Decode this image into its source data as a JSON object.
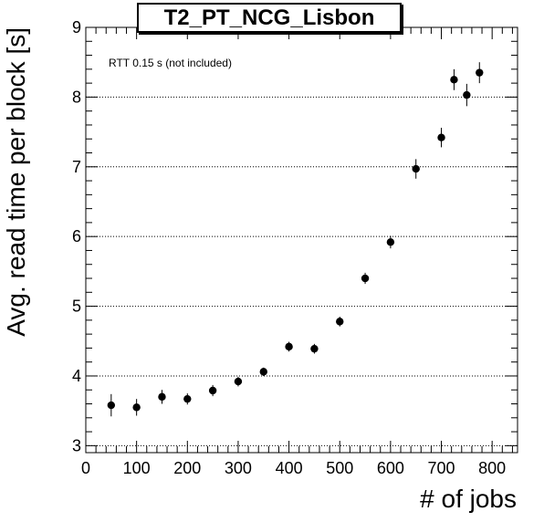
{
  "chart_data": {
    "type": "scatter",
    "title": "T2_PT_NCG_Lisbon",
    "annotation": "RTT 0.15 s (not included)",
    "xlabel": "# of jobs",
    "ylabel": "Avg. read time per block [s]",
    "xlim": [
      0,
      850
    ],
    "ylim": [
      2.9,
      9.0
    ],
    "x_ticks": [
      0,
      100,
      200,
      300,
      400,
      500,
      600,
      700,
      800
    ],
    "y_ticks": [
      3,
      4,
      5,
      6,
      7,
      8,
      9
    ],
    "grid": "horizontal dotted",
    "series": [
      {
        "points": [
          {
            "x": 50,
            "y": 3.58,
            "err": 0.16
          },
          {
            "x": 100,
            "y": 3.55,
            "err": 0.12
          },
          {
            "x": 150,
            "y": 3.7,
            "err": 0.1
          },
          {
            "x": 200,
            "y": 3.67,
            "err": 0.08
          },
          {
            "x": 250,
            "y": 3.79,
            "err": 0.08
          },
          {
            "x": 300,
            "y": 3.92,
            "err": 0.07
          },
          {
            "x": 350,
            "y": 4.06,
            "err": 0.06
          },
          {
            "x": 400,
            "y": 4.42,
            "err": 0.07
          },
          {
            "x": 450,
            "y": 4.39,
            "err": 0.07
          },
          {
            "x": 500,
            "y": 4.78,
            "err": 0.07
          },
          {
            "x": 550,
            "y": 5.4,
            "err": 0.08
          },
          {
            "x": 600,
            "y": 5.92,
            "err": 0.09
          },
          {
            "x": 650,
            "y": 6.97,
            "err": 0.14
          },
          {
            "x": 700,
            "y": 7.42,
            "err": 0.14
          },
          {
            "x": 725,
            "y": 8.25,
            "err": 0.15
          },
          {
            "x": 750,
            "y": 8.03,
            "err": 0.16
          },
          {
            "x": 775,
            "y": 8.35,
            "err": 0.15
          }
        ]
      }
    ]
  }
}
